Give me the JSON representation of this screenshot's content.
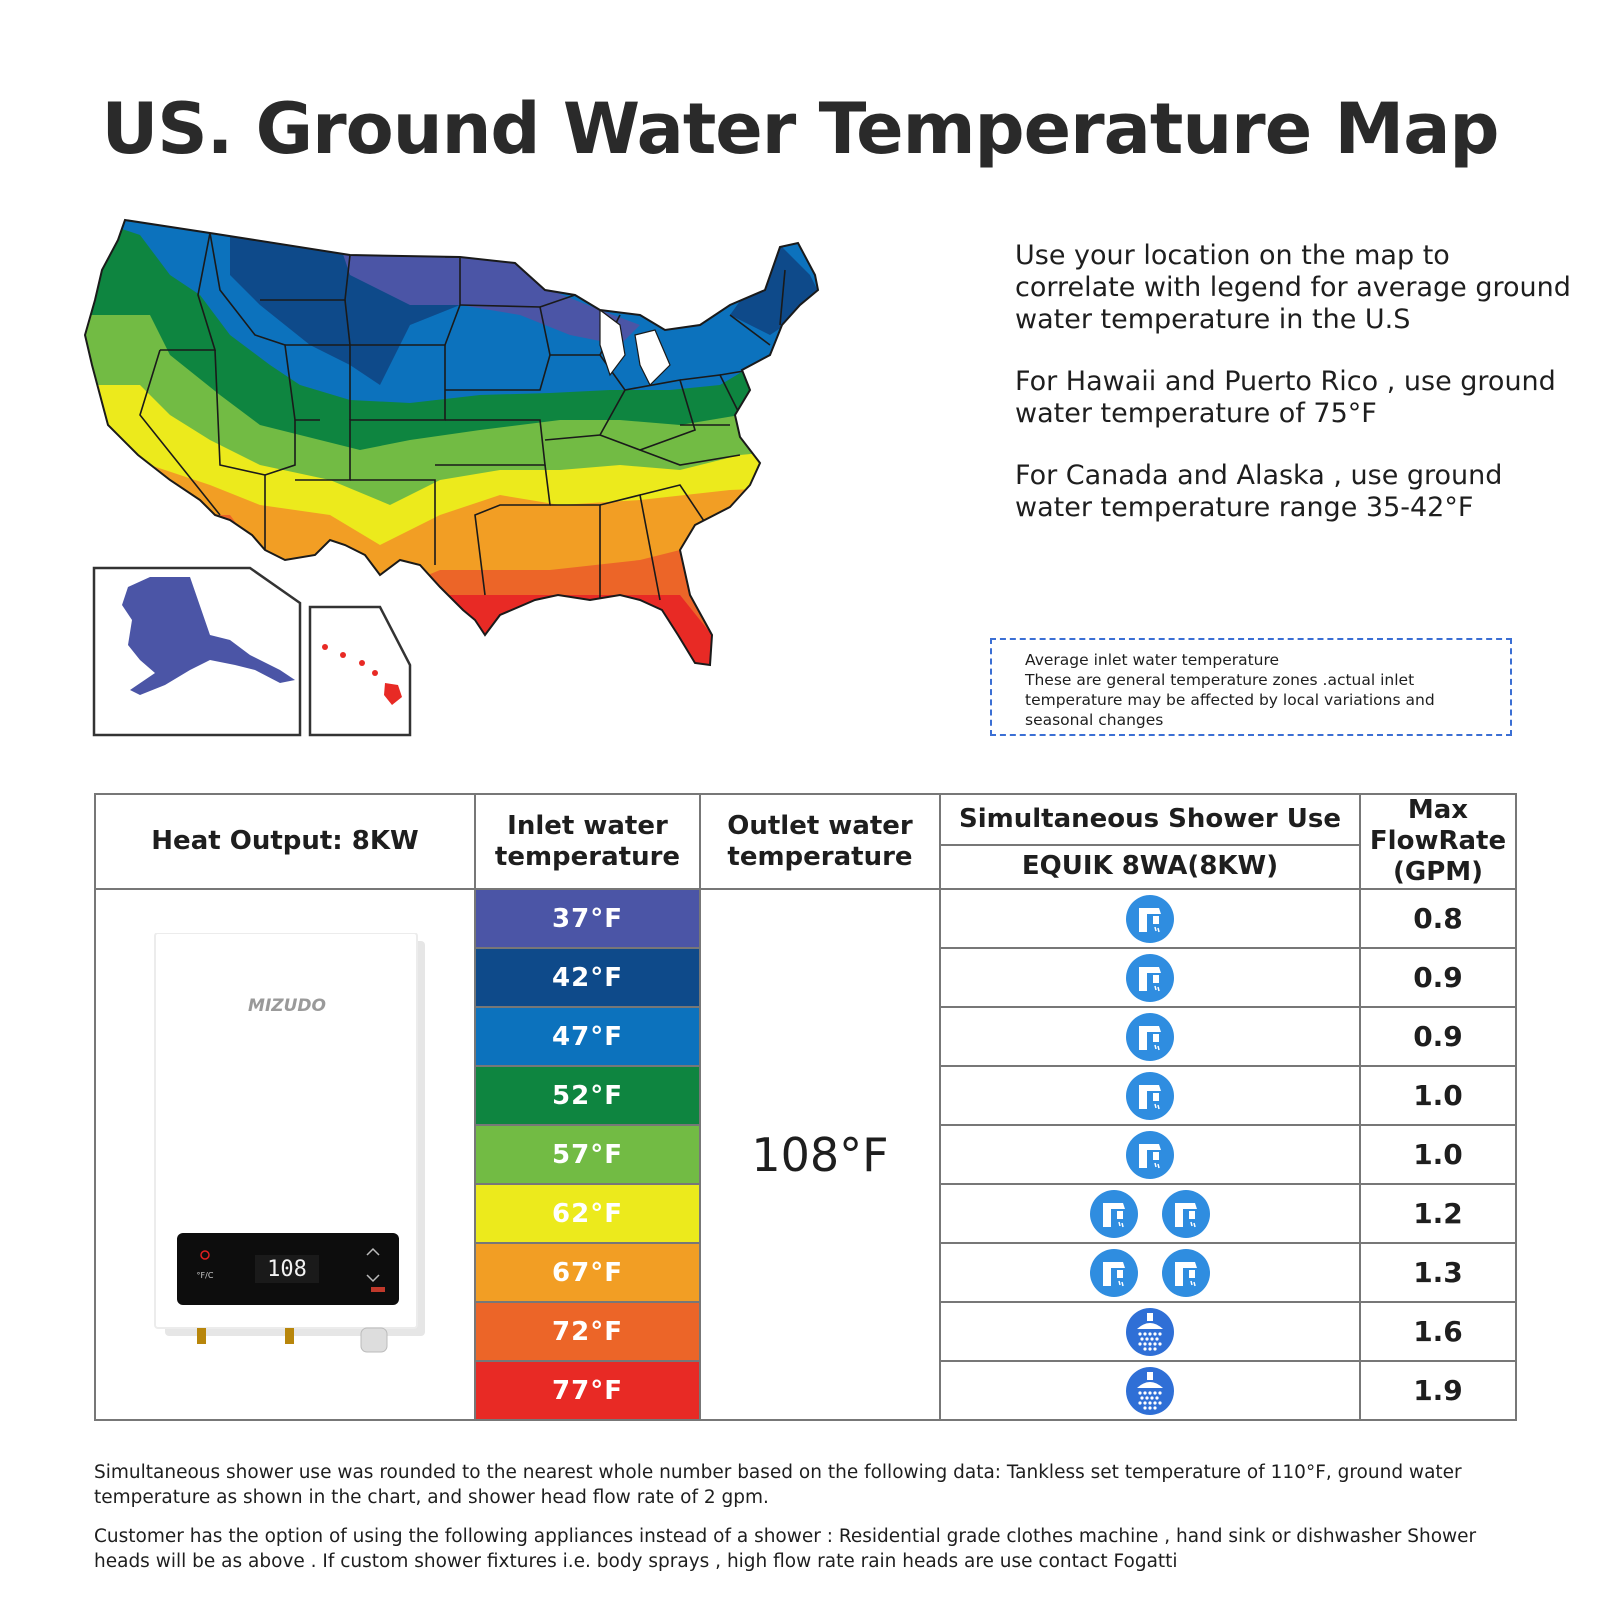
{
  "title": "US. Ground Water Temperature Map",
  "info": {
    "p1": "Use your location on the map to correlate with legend for average ground water temperature in the U.S",
    "p2": "For Hawaii and Puerto Rico , use ground water temperature of 75°F",
    "p3": "For Canada and Alaska , use ground water temperature range 35-42°F"
  },
  "note": {
    "line1": "Average inlet water temperature",
    "line2": "These are general temperature zones .actual inlet temperature may be affected by local variations and seasonal changes"
  },
  "table": {
    "heat_output": "Heat Output: 8KW",
    "inlet_header": "Inlet water temperature",
    "outlet_header": "Outlet water temperature",
    "simultaneous_header": "Simultaneous Shower Use",
    "model": "EQUIK 8WA(8KW)",
    "max_flow_header": "Max FlowRate (GPM)",
    "outlet_value": "108°F",
    "rows": [
      {
        "inlet": "37°F",
        "color": "#4b55a6",
        "flow": "0.8",
        "icon": "faucet-icon",
        "count": 1
      },
      {
        "inlet": "42°F",
        "color": "#0e4a8a",
        "flow": "0.9",
        "icon": "faucet-icon",
        "count": 1
      },
      {
        "inlet": "47°F",
        "color": "#0c72bd",
        "flow": "0.9",
        "icon": "faucet-icon",
        "count": 1
      },
      {
        "inlet": "52°F",
        "color": "#0e8540",
        "flow": "1.0",
        "icon": "faucet-icon",
        "count": 1
      },
      {
        "inlet": "57°F",
        "color": "#72bb44",
        "flow": "1.0",
        "icon": "faucet-icon",
        "count": 1
      },
      {
        "inlet": "62°F",
        "color": "#ecea1c",
        "flow": "1.2",
        "icon": "faucet-icon",
        "count": 2
      },
      {
        "inlet": "67°F",
        "color": "#f29e24",
        "flow": "1.3",
        "icon": "faucet-icon",
        "count": 2
      },
      {
        "inlet": "72°F",
        "color": "#ec6528",
        "flow": "1.6",
        "icon": "shower-head-icon",
        "count": 1
      },
      {
        "inlet": "77°F",
        "color": "#e82a25",
        "flow": "1.9",
        "icon": "shower-head-icon",
        "count": 1
      }
    ]
  },
  "heater": {
    "brand": "MIZUDO",
    "display": "108",
    "unit_label": "°F/C"
  },
  "footer": {
    "p1": "Simultaneous shower use was rounded to the nearest whole number based on the following data: Tankless set temperature of 110°F, ground water temperature as shown in the chart, and shower head flow rate of 2 gpm.",
    "p2": "Customer has the option of using the following appliances instead of a shower : Residential grade clothes machine , hand sink or dishwasher Shower heads will be as above . If custom shower fixtures i.e. body sprays , high flow rate rain heads are use contact Fogatti"
  }
}
